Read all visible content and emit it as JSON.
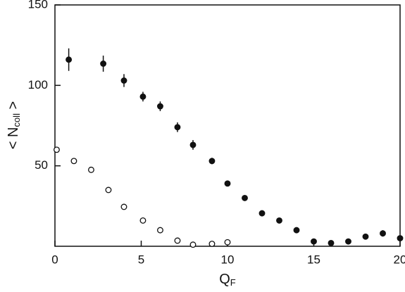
{
  "chart_data": {
    "type": "scatter",
    "xlabel": [
      "Q",
      "F"
    ],
    "ylabel": [
      "< N",
      "coll",
      " >"
    ],
    "xlim": [
      0,
      20
    ],
    "xticks": [
      0,
      5,
      10,
      15,
      20
    ],
    "ylim": [
      0,
      150
    ],
    "yticks": [
      50,
      100,
      150
    ],
    "series": [
      {
        "color": "#111111",
        "filled": true,
        "x": [
          0.8,
          2.8,
          4,
          5.1,
          6.1,
          7.1,
          8,
          9.1,
          10,
          11,
          12,
          13,
          14,
          15,
          16,
          17,
          18,
          19,
          20
        ],
        "values": [
          116,
          113.5,
          103,
          93,
          87,
          74,
          63,
          53,
          39,
          30,
          20.5,
          16,
          10,
          3,
          2,
          3,
          6,
          8,
          5
        ],
        "errors": [
          7,
          5,
          4,
          3,
          3,
          3,
          3,
          2,
          null,
          null,
          null,
          null,
          null,
          null,
          null,
          null,
          null,
          2,
          null
        ]
      },
      {
        "color": "#111111",
        "filled": false,
        "x": [
          0.1,
          1.1,
          2.1,
          3.1,
          4,
          5.1,
          6.1,
          7.1,
          8,
          9.1,
          10
        ],
        "values": [
          60,
          53,
          47.5,
          35,
          24.5,
          16,
          10,
          3.5,
          1,
          1.5,
          2.5
        ]
      }
    ]
  }
}
